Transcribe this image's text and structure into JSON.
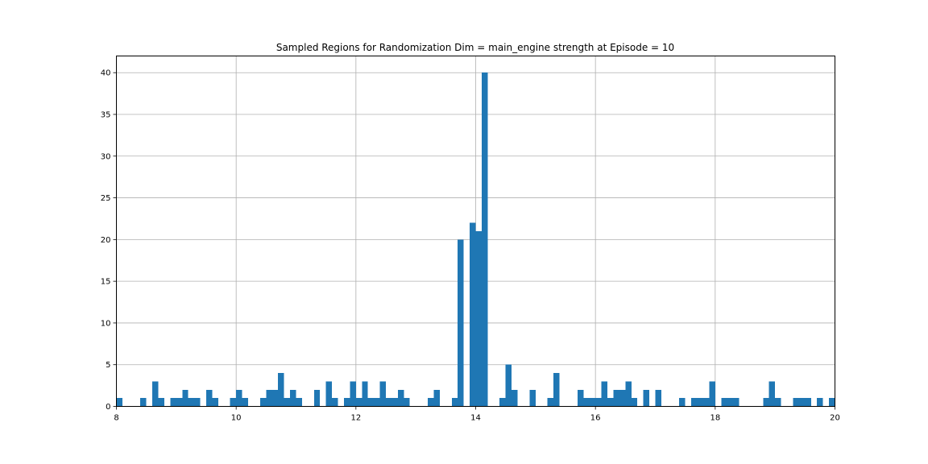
{
  "chart_data": {
    "type": "bar",
    "title": "Sampled Regions for Randomization Dim = main_engine strength at Episode = 10",
    "xlabel": "",
    "ylabel": "",
    "xlim": [
      8.0,
      20.0
    ],
    "ylim": [
      0,
      42
    ],
    "xticks": [
      8,
      10,
      12,
      14,
      16,
      18,
      20
    ],
    "yticks": [
      0,
      5,
      10,
      15,
      20,
      25,
      30,
      35,
      40
    ],
    "grid": true,
    "bar_color": "#1f77b4",
    "bin_width": 0.1,
    "bins_start": [
      8.0,
      8.1,
      8.2,
      8.3,
      8.4,
      8.5,
      8.6,
      8.7,
      8.8,
      8.9,
      9.0,
      9.1,
      9.2,
      9.3,
      9.4,
      9.5,
      9.6,
      9.7,
      9.8,
      9.9,
      10.0,
      10.1,
      10.2,
      10.3,
      10.4,
      10.5,
      10.6,
      10.7,
      10.8,
      10.9,
      11.0,
      11.1,
      11.2,
      11.3,
      11.4,
      11.5,
      11.6,
      11.7,
      11.8,
      11.9,
      12.0,
      12.1,
      12.2,
      12.3,
      12.4,
      12.5,
      12.6,
      12.7,
      12.8,
      12.9,
      13.0,
      13.1,
      13.2,
      13.3,
      13.4,
      13.5,
      13.6,
      13.7,
      13.8,
      13.9,
      14.0,
      14.1,
      14.2,
      14.3,
      14.4,
      14.5,
      14.6,
      14.7,
      14.8,
      14.9,
      15.0,
      15.1,
      15.2,
      15.3,
      15.4,
      15.5,
      15.6,
      15.7,
      15.8,
      15.9,
      16.0,
      16.1,
      16.2,
      16.3,
      16.4,
      16.5,
      16.6,
      16.7,
      16.8,
      16.9,
      17.0,
      17.1,
      17.2,
      17.3,
      17.4,
      17.5,
      17.6,
      17.7,
      17.8,
      17.9,
      18.0,
      18.1,
      18.2,
      18.3,
      18.4,
      18.5,
      18.6,
      18.7,
      18.8,
      18.9,
      19.0,
      19.1,
      19.2,
      19.3,
      19.4,
      19.5,
      19.6,
      19.7,
      19.8,
      19.9
    ],
    "values": [
      1,
      0,
      0,
      0,
      1,
      0,
      3,
      1,
      0,
      1,
      1,
      2,
      1,
      1,
      0,
      2,
      1,
      0,
      0,
      1,
      2,
      1,
      0,
      0,
      1,
      2,
      2,
      4,
      1,
      2,
      1,
      0,
      0,
      2,
      0,
      3,
      1,
      0,
      1,
      3,
      1,
      3,
      1,
      1,
      3,
      1,
      1,
      2,
      1,
      0,
      0,
      0,
      1,
      2,
      0,
      0,
      1,
      20,
      0,
      22,
      21,
      40,
      0,
      0,
      1,
      5,
      2,
      0,
      0,
      2,
      0,
      0,
      1,
      4,
      0,
      0,
      0,
      2,
      1,
      1,
      1,
      3,
      1,
      2,
      2,
      3,
      1,
      0,
      2,
      0,
      2,
      0,
      0,
      0,
      1,
      0,
      1,
      1,
      1,
      3,
      0,
      1,
      1,
      1,
      0,
      0,
      0,
      0,
      1,
      3,
      1,
      0,
      0,
      1,
      1,
      1,
      0,
      1,
      0,
      1
    ]
  }
}
